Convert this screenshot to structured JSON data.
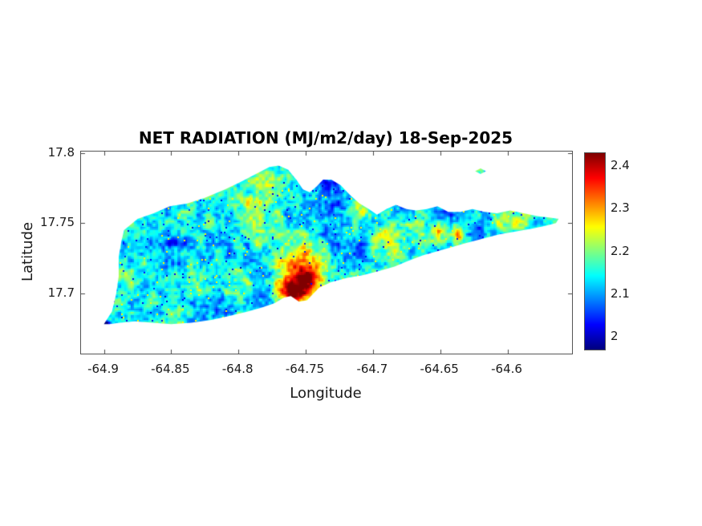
{
  "chart_data": {
    "type": "heatmap",
    "title": "NET RADIATION (MJ/m2/day) 18-Sep-2025",
    "xlabel": "Longitude",
    "ylabel": "Latitude",
    "xlim": [
      -64.917,
      -64.552
    ],
    "ylim": [
      17.657,
      17.801
    ],
    "grid": false,
    "xticks": {
      "values": [
        -64.9,
        -64.85,
        -64.8,
        -64.75,
        -64.7,
        -64.65,
        -64.6
      ],
      "labels": [
        "-64.9",
        "-64.85",
        "-64.8",
        "-64.75",
        "-64.7",
        "-64.65",
        "-64.6"
      ]
    },
    "yticks": {
      "values": [
        17.8,
        17.75,
        17.7
      ],
      "labels": [
        "17.8",
        "17.75",
        "17.7"
      ]
    },
    "colormap": "jet",
    "clim": [
      1.97,
      2.43
    ],
    "colorbar": {
      "position": "right",
      "tick_values": [
        2.4,
        2.3,
        2.2,
        2.1,
        2
      ],
      "tick_labels": [
        "2.4",
        "2.3",
        "2.2",
        "2.1",
        "2"
      ]
    },
    "field": {
      "base_value": 2.135,
      "noise_amp": [
        0.055,
        0.05,
        0.04
      ],
      "speckle_low": 2.0,
      "speckle_high": 2.26,
      "hotspots": [
        {
          "lon": -64.756,
          "lat": 17.716,
          "sigma": 0.013,
          "amp": 0.17
        },
        {
          "lon": -64.759,
          "lat": 17.701,
          "sigma": 0.007,
          "amp": 0.27
        },
        {
          "lon": -64.748,
          "lat": 17.71,
          "sigma": 0.006,
          "amp": 0.13
        },
        {
          "lon": -64.752,
          "lat": 17.734,
          "sigma": 0.009,
          "amp": 0.08
        },
        {
          "lon": -64.711,
          "lat": 17.762,
          "sigma": 0.005,
          "amp": 0.11
        },
        {
          "lon": -64.688,
          "lat": 17.74,
          "sigma": 0.007,
          "amp": 0.13
        },
        {
          "lon": -64.67,
          "lat": 17.748,
          "sigma": 0.005,
          "amp": 0.09
        },
        {
          "lon": -64.652,
          "lat": 17.744,
          "sigma": 0.0045,
          "amp": 0.2
        },
        {
          "lon": -64.637,
          "lat": 17.742,
          "sigma": 0.0045,
          "amp": 0.16
        },
        {
          "lon": -64.795,
          "lat": 17.77,
          "sigma": 0.012,
          "amp": 0.07
        },
        {
          "lon": -64.782,
          "lat": 17.745,
          "sigma": 0.01,
          "amp": 0.06
        },
        {
          "lon": -64.84,
          "lat": 17.757,
          "sigma": 0.008,
          "amp": 0.05
        },
        {
          "lon": -64.6,
          "lat": 17.752,
          "sigma": 0.008,
          "amp": 0.05
        },
        {
          "lon": -64.899,
          "lat": 17.678,
          "sigma": 0.002,
          "amp": -0.15
        }
      ]
    },
    "region": {
      "outline": [
        [
          -64.9,
          17.678
        ],
        [
          -64.894,
          17.687
        ],
        [
          -64.891,
          17.699
        ],
        [
          -64.889,
          17.712
        ],
        [
          -64.889,
          17.726
        ],
        [
          -64.887,
          17.737
        ],
        [
          -64.885,
          17.745
        ],
        [
          -64.875,
          17.753
        ],
        [
          -64.863,
          17.757
        ],
        [
          -64.851,
          17.762
        ],
        [
          -64.838,
          17.764
        ],
        [
          -64.825,
          17.768
        ],
        [
          -64.81,
          17.774
        ],
        [
          -64.797,
          17.78
        ],
        [
          -64.785,
          17.786
        ],
        [
          -64.777,
          17.79
        ],
        [
          -64.77,
          17.791
        ],
        [
          -64.763,
          17.788
        ],
        [
          -64.757,
          17.781
        ],
        [
          -64.752,
          17.774
        ],
        [
          -64.747,
          17.772
        ],
        [
          -64.742,
          17.776
        ],
        [
          -64.737,
          17.781
        ],
        [
          -64.731,
          17.781
        ],
        [
          -64.724,
          17.777
        ],
        [
          -64.717,
          17.77
        ],
        [
          -64.71,
          17.764
        ],
        [
          -64.703,
          17.76
        ],
        [
          -64.697,
          17.756
        ],
        [
          -64.69,
          17.76
        ],
        [
          -64.683,
          17.763
        ],
        [
          -64.675,
          17.76
        ],
        [
          -64.668,
          17.759
        ],
        [
          -64.66,
          17.76
        ],
        [
          -64.652,
          17.762
        ],
        [
          -64.644,
          17.758
        ],
        [
          -64.635,
          17.758
        ],
        [
          -64.626,
          17.76
        ],
        [
          -64.617,
          17.758
        ],
        [
          -64.608,
          17.757
        ],
        [
          -64.598,
          17.759
        ],
        [
          -64.588,
          17.757
        ],
        [
          -64.578,
          17.755
        ],
        [
          -64.569,
          17.754
        ],
        [
          -64.562,
          17.753
        ],
        [
          -64.564,
          17.75
        ],
        [
          -64.572,
          17.748
        ],
        [
          -64.582,
          17.746
        ],
        [
          -64.594,
          17.744
        ],
        [
          -64.606,
          17.742
        ],
        [
          -64.618,
          17.739
        ],
        [
          -64.63,
          17.736
        ],
        [
          -64.641,
          17.733
        ],
        [
          -64.652,
          17.73
        ],
        [
          -64.663,
          17.727
        ],
        [
          -64.674,
          17.723
        ],
        [
          -64.684,
          17.719
        ],
        [
          -64.695,
          17.716
        ],
        [
          -64.707,
          17.713
        ],
        [
          -64.719,
          17.711
        ],
        [
          -64.731,
          17.708
        ],
        [
          -64.74,
          17.704
        ],
        [
          -64.745,
          17.699
        ],
        [
          -64.749,
          17.695
        ],
        [
          -64.755,
          17.694
        ],
        [
          -64.761,
          17.698
        ],
        [
          -64.766,
          17.697
        ],
        [
          -64.773,
          17.693
        ],
        [
          -64.782,
          17.69
        ],
        [
          -64.793,
          17.687
        ],
        [
          -64.806,
          17.684
        ],
        [
          -64.82,
          17.681
        ],
        [
          -64.835,
          17.679
        ],
        [
          -64.85,
          17.678
        ],
        [
          -64.864,
          17.679
        ],
        [
          -64.877,
          17.68
        ],
        [
          -64.888,
          17.679
        ],
        [
          -64.896,
          17.678
        ]
      ],
      "islets": [
        [
          [
            -64.624,
            17.787
          ],
          [
            -64.62,
            17.789
          ],
          [
            -64.616,
            17.787
          ],
          [
            -64.62,
            17.785
          ]
        ]
      ]
    }
  }
}
